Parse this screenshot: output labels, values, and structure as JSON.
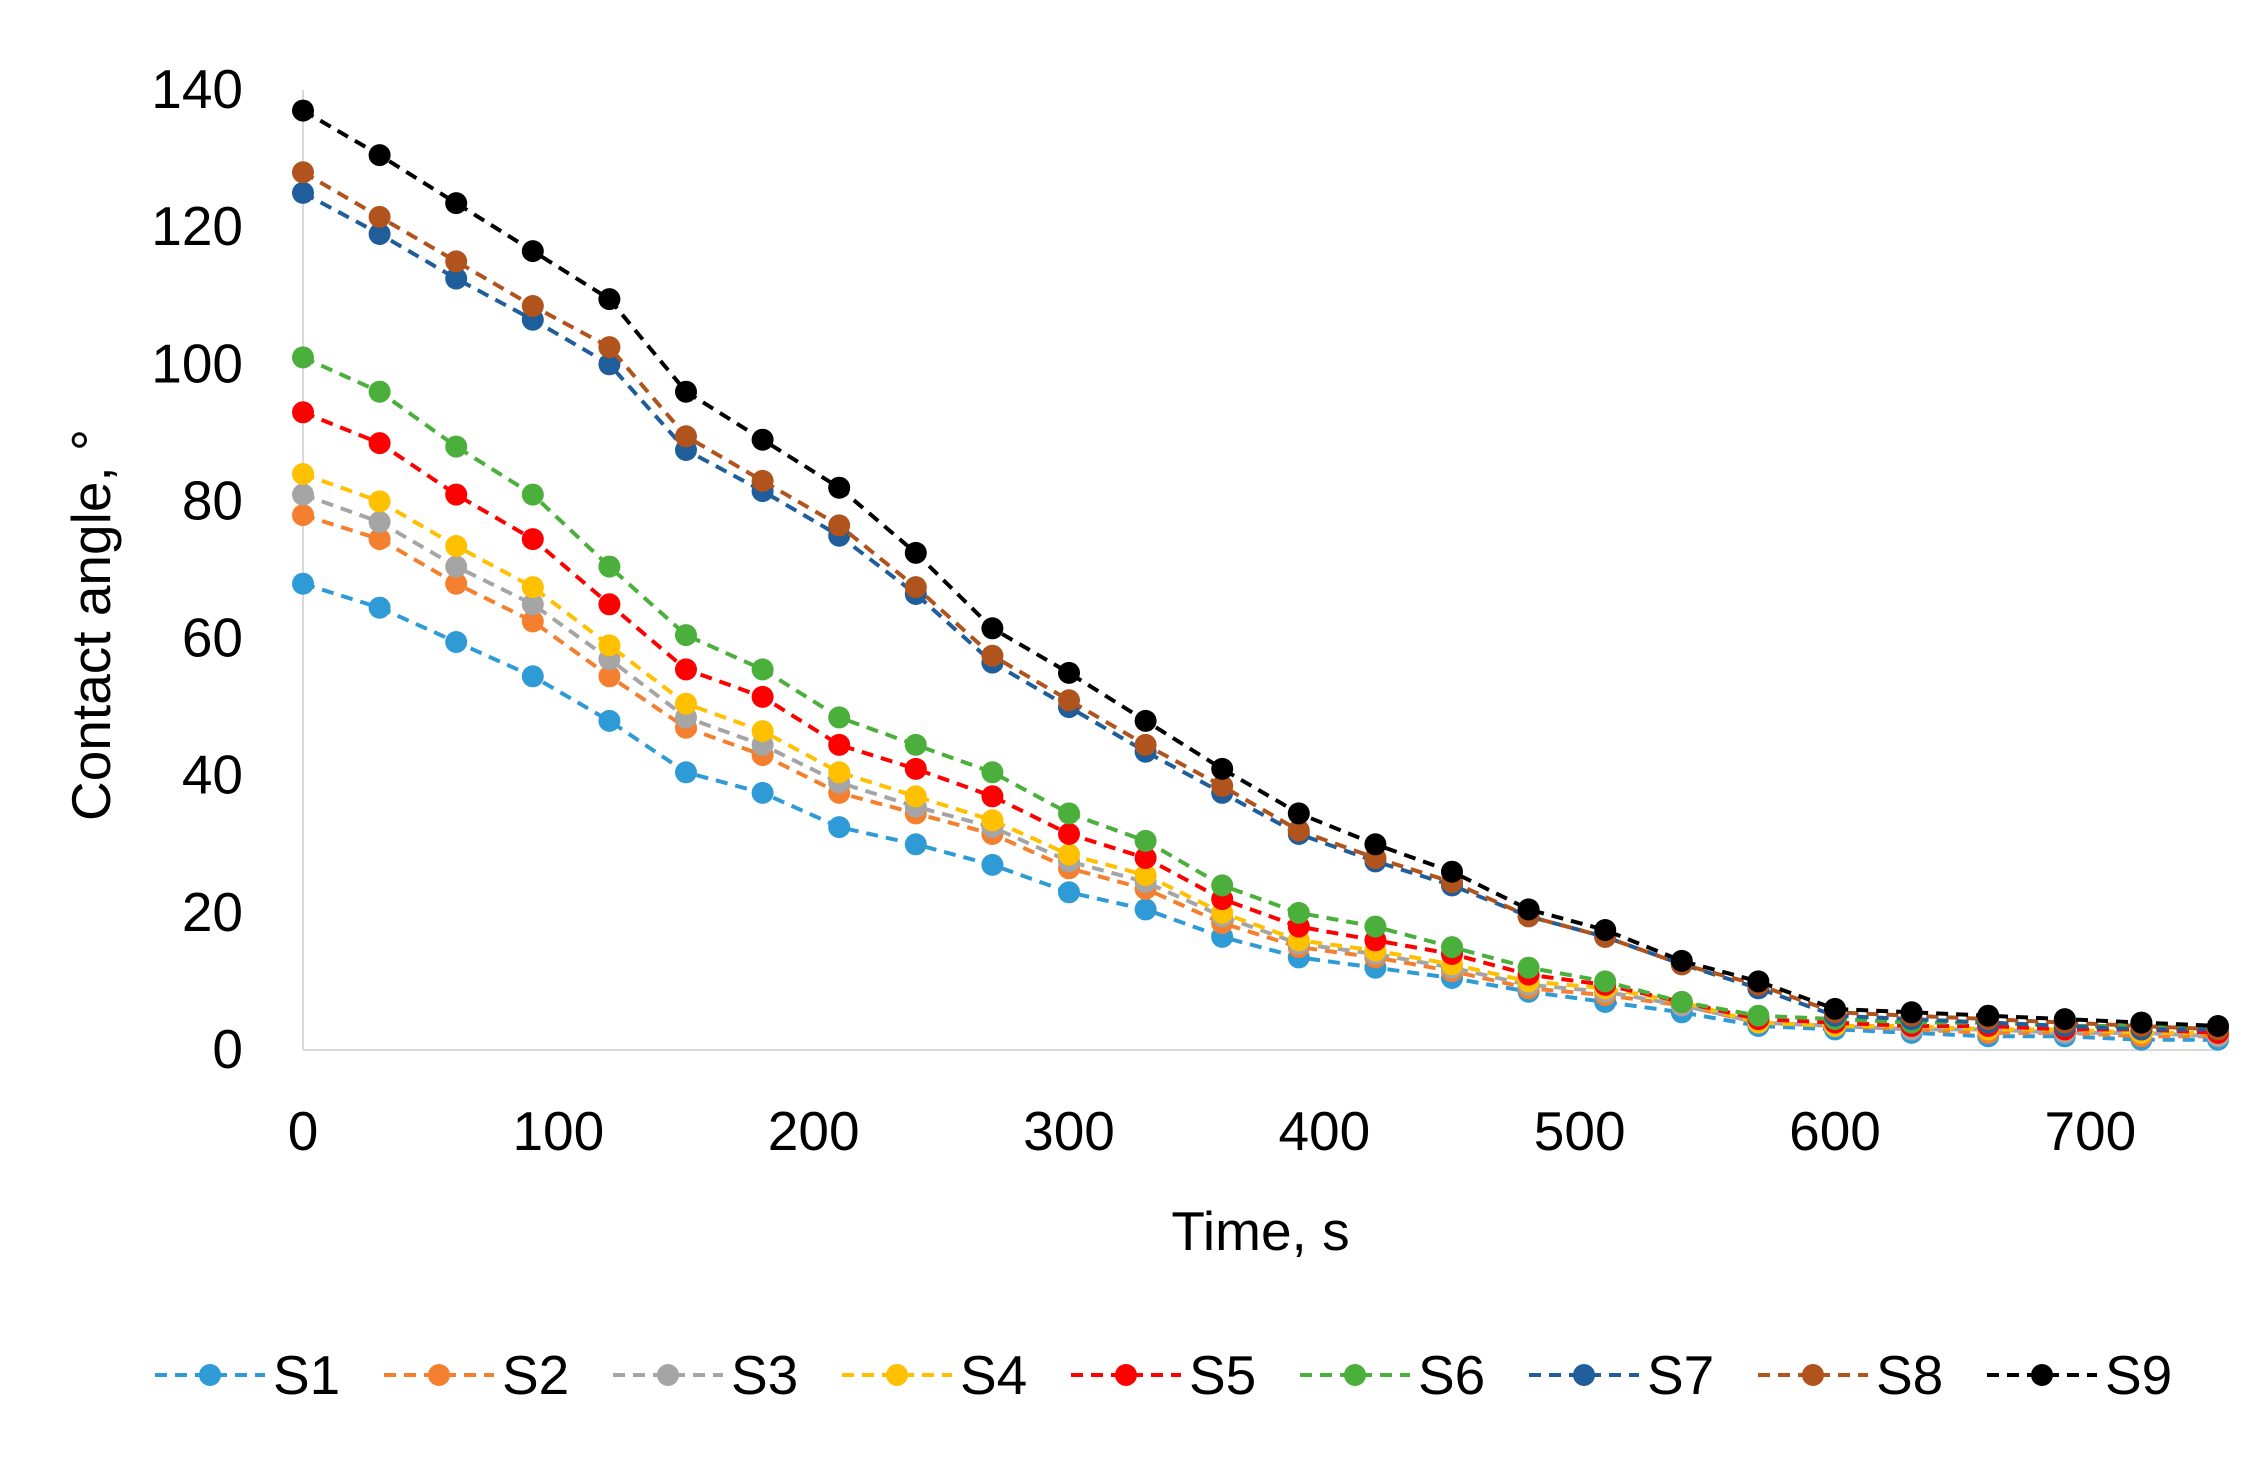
{
  "chart_data": {
    "type": "line",
    "title": "",
    "xlabel": "Time, s",
    "ylabel": "Contact angle, °",
    "xlim": [
      0,
      750
    ],
    "ylim": [
      0,
      140
    ],
    "xticks": [
      0,
      100,
      200,
      300,
      400,
      500,
      600,
      700
    ],
    "yticks": [
      0,
      20,
      40,
      60,
      80,
      100,
      120,
      140
    ],
    "grid": false,
    "legend_position": "bottom",
    "x": [
      0,
      30,
      60,
      90,
      120,
      150,
      180,
      210,
      240,
      270,
      300,
      330,
      360,
      390,
      420,
      450,
      480,
      510,
      540,
      570,
      600,
      630,
      660,
      690,
      720,
      750
    ],
    "series": [
      {
        "name": "S1",
        "color": "#2E9BD6",
        "values": [
          68,
          64.5,
          59.5,
          54.5,
          48,
          40.5,
          37.5,
          32.5,
          30,
          27,
          23,
          20.5,
          16.5,
          13.5,
          12,
          10.5,
          8.5,
          7,
          5.5,
          3.5,
          3,
          2.5,
          2,
          2,
          1.5,
          1.5
        ]
      },
      {
        "name": "S2",
        "color": "#F4802F",
        "values": [
          78,
          74.5,
          68,
          62.5,
          54.5,
          47,
          43,
          37.5,
          34.5,
          31.5,
          26.5,
          23.5,
          18.5,
          15,
          13.5,
          11.5,
          9,
          8,
          6.5,
          4,
          3.5,
          3,
          2.5,
          2.5,
          2,
          2
        ]
      },
      {
        "name": "S3",
        "color": "#A5A5A5",
        "values": [
          81,
          77,
          70.5,
          65,
          57,
          48.5,
          44.5,
          39,
          35.5,
          32.5,
          27.5,
          24.5,
          19.5,
          15.5,
          14,
          12,
          9.5,
          8.5,
          6.5,
          4,
          3.5,
          3,
          3,
          2.5,
          2.5,
          2
        ]
      },
      {
        "name": "S4",
        "color": "#FFC000",
        "values": [
          84,
          80,
          73.5,
          67.5,
          59,
          50.5,
          46.5,
          40.5,
          37,
          33.5,
          28.5,
          25.5,
          20,
          16,
          14.5,
          12.5,
          10,
          9,
          7,
          4,
          3.5,
          3.5,
          3,
          3,
          2.5,
          2.5
        ]
      },
      {
        "name": "S5",
        "color": "#FF0000",
        "values": [
          93,
          88.5,
          81,
          74.5,
          65,
          55.5,
          51.5,
          44.5,
          41,
          37,
          31.5,
          28,
          22,
          18,
          16,
          14,
          11,
          9.5,
          7,
          4.5,
          4,
          3.5,
          3.5,
          3,
          3,
          2.5
        ]
      },
      {
        "name": "S6",
        "color": "#4BAF3B",
        "values": [
          101,
          96,
          88,
          81,
          70.5,
          60.5,
          55.5,
          48.5,
          44.5,
          40.5,
          34.5,
          30.5,
          24,
          20,
          18,
          15,
          12,
          10,
          7,
          5,
          4.5,
          4,
          4,
          3.5,
          3.5,
          3
        ]
      },
      {
        "name": "S7",
        "color": "#1F5E9B",
        "values": [
          125,
          119,
          112.5,
          106.5,
          100,
          87.5,
          81.5,
          75,
          66.5,
          56.5,
          50,
          43.5,
          37.5,
          31.5,
          27.5,
          24,
          19.5,
          16.5,
          12.5,
          9,
          5,
          4.5,
          4,
          3.5,
          3,
          3
        ]
      },
      {
        "name": "S8",
        "color": "#B0531C",
        "values": [
          128,
          121.5,
          115,
          108.5,
          102.5,
          89.5,
          83,
          76.5,
          67.5,
          57.5,
          51,
          44.5,
          38.5,
          32,
          28,
          24.5,
          19.5,
          16.5,
          12.5,
          9.5,
          5.5,
          5,
          4.5,
          4,
          3.5,
          3
        ]
      },
      {
        "name": "S9",
        "color": "#000000",
        "values": [
          137,
          130.5,
          123.5,
          116.5,
          109.5,
          96,
          89,
          82,
          72.5,
          61.5,
          55,
          48,
          41,
          34.5,
          30,
          26,
          20.5,
          17.5,
          13,
          10,
          6,
          5.5,
          5,
          4.5,
          4,
          3.5
        ]
      }
    ]
  }
}
